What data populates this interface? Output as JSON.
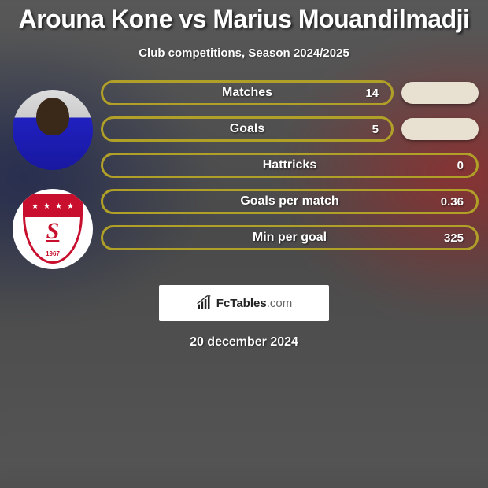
{
  "title": "Arouna Kone vs Marius Mouandilmadji",
  "subtitle": "Club competitions, Season 2024/2025",
  "date": "20 december 2024",
  "attribution": {
    "name": "FcTables",
    "suffix": ".com"
  },
  "colors": {
    "bar_border": "#b0a028",
    "pill_fill": "#e8e0d0",
    "club_red": "#c8102e"
  },
  "club": {
    "letter": "S",
    "year": "1967",
    "stars": 4
  },
  "stats": [
    {
      "label": "Matches",
      "value": "14",
      "show_pill": true
    },
    {
      "label": "Goals",
      "value": "5",
      "show_pill": true
    },
    {
      "label": "Hattricks",
      "value": "0",
      "show_pill": false
    },
    {
      "label": "Goals per match",
      "value": "0.36",
      "show_pill": false
    },
    {
      "label": "Min per goal",
      "value": "325",
      "show_pill": false
    }
  ]
}
